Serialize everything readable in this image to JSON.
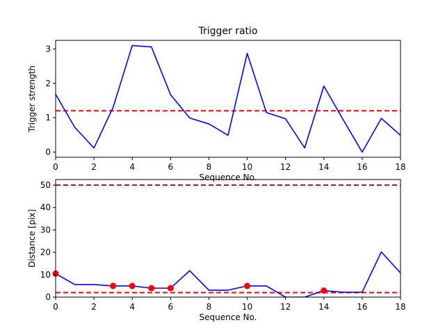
{
  "chart_data": [
    {
      "type": "line",
      "title": "Trigger ratio",
      "xlabel": "Sequence No.",
      "ylabel": "Trigger strength",
      "xlim": [
        0,
        18
      ],
      "ylim": [
        -0.15,
        3.25
      ],
      "xticks": [
        0,
        2,
        4,
        6,
        8,
        10,
        12,
        14,
        16,
        18
      ],
      "yticks": [
        0,
        1,
        2,
        3
      ],
      "grid": false,
      "series": [
        {
          "color": "#0000ff",
          "style": "solid",
          "x": [
            0,
            1,
            2,
            3,
            4,
            5,
            6,
            7,
            8,
            9,
            10,
            11,
            12,
            13,
            14,
            15,
            16,
            17,
            18
          ],
          "y": [
            1.68,
            0.72,
            0.12,
            1.3,
            3.1,
            3.06,
            1.67,
            0.99,
            0.82,
            0.49,
            2.87,
            1.15,
            0.97,
            0.12,
            1.92,
            0.95,
            0.0,
            0.98,
            0.49
          ]
        }
      ],
      "reference_lines": [
        {
          "y": 1.2,
          "color": "#ff0000",
          "style": "dashed"
        }
      ]
    },
    {
      "type": "line",
      "title": "",
      "xlabel": "Sequence No.",
      "ylabel": "Distance [pix]",
      "xlim": [
        0,
        18
      ],
      "ylim": [
        0,
        52.5
      ],
      "xticks": [
        0,
        2,
        4,
        6,
        8,
        10,
        12,
        14,
        16,
        18
      ],
      "yticks": [
        0,
        10,
        20,
        30,
        40,
        50
      ],
      "grid": false,
      "series": [
        {
          "color": "#0000ff",
          "style": "solid",
          "x": [
            0,
            1,
            2,
            3,
            4,
            5,
            6,
            7,
            8,
            9,
            10,
            11,
            12,
            13,
            14,
            15,
            16,
            17,
            18
          ],
          "y": [
            10.5,
            5.6,
            5.6,
            5.0,
            5.0,
            4.0,
            4.0,
            11.8,
            3.1,
            3.1,
            5.0,
            5.0,
            0.0,
            0.0,
            2.9,
            2.2,
            2.2,
            20.2,
            10.8
          ]
        }
      ],
      "markers": {
        "color": "#ff0000",
        "x": [
          0,
          3,
          4,
          5,
          6,
          10,
          14
        ],
        "y": [
          10.5,
          5.0,
          5.0,
          4.0,
          4.0,
          5.0,
          2.9
        ]
      },
      "reference_lines": [
        {
          "y": 50,
          "color": "#ff0000",
          "style": "dashed"
        },
        {
          "y": 2,
          "color": "#ff0000",
          "style": "dashed"
        }
      ]
    }
  ]
}
